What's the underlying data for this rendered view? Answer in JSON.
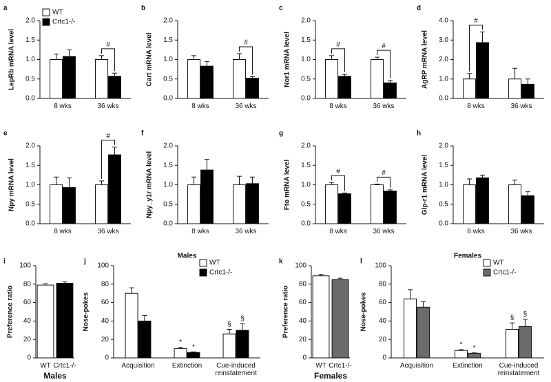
{
  "chart_data": [
    {
      "type": "bar",
      "label": "a",
      "ylabel": "LepRb mRNA level",
      "categories": [
        "8 wks",
        "36 wks"
      ],
      "legend": "upper-left",
      "series": [
        {
          "name": "WT",
          "color": "#ffffff",
          "values": [
            1.0,
            1.0
          ],
          "errors": [
            0.14,
            0.1
          ]
        },
        {
          "name": "Crtc1-/-",
          "color": "#000000",
          "values": [
            1.08,
            0.57
          ],
          "errors": [
            0.17,
            0.08
          ]
        }
      ],
      "brackets": [
        null,
        "#"
      ],
      "ylim": [
        0,
        2
      ],
      "yticks": [
        {
          "value": 0,
          "label": "0.0"
        },
        {
          "value": 0.5,
          "label": "0.5"
        },
        {
          "value": 1,
          "label": "1.0"
        },
        {
          "value": 1.5,
          "label": "1.5"
        },
        {
          "value": 2,
          "label": "2.0"
        }
      ]
    },
    {
      "type": "bar",
      "label": "b",
      "ylabel": "Cart mRNA level",
      "categories": [
        "8 wks",
        "36 wks"
      ],
      "series": [
        {
          "name": "WT",
          "color": "#ffffff",
          "values": [
            1.0,
            1.0
          ],
          "errors": [
            0.1,
            0.15
          ]
        },
        {
          "name": "Crtc1-/-",
          "color": "#000000",
          "values": [
            0.83,
            0.52
          ],
          "errors": [
            0.12,
            0.04
          ]
        }
      ],
      "brackets": [
        null,
        "#"
      ],
      "ylim": [
        0,
        2
      ],
      "yticks": [
        {
          "value": 0,
          "label": "0.0"
        },
        {
          "value": 0.5,
          "label": "0.5"
        },
        {
          "value": 1,
          "label": "1.0"
        },
        {
          "value": 1.5,
          "label": "1.5"
        },
        {
          "value": 2,
          "label": "2.0"
        }
      ]
    },
    {
      "type": "bar",
      "label": "c",
      "ylabel": "Nor1 mRNA level",
      "categories": [
        "8 wks",
        "36 wks"
      ],
      "series": [
        {
          "name": "WT",
          "color": "#ffffff",
          "values": [
            1.0,
            1.0
          ],
          "errors": [
            0.1,
            0.06
          ]
        },
        {
          "name": "Crtc1-/-",
          "color": "#000000",
          "values": [
            0.57,
            0.4
          ],
          "errors": [
            0.05,
            0.06
          ]
        }
      ],
      "brackets": [
        "#",
        "#"
      ],
      "ylim": [
        0,
        2
      ],
      "yticks": [
        {
          "value": 0,
          "label": "0.0"
        },
        {
          "value": 0.5,
          "label": "0.5"
        },
        {
          "value": 1,
          "label": "1.0"
        },
        {
          "value": 1.5,
          "label": "1.5"
        },
        {
          "value": 2,
          "label": "2.0"
        }
      ]
    },
    {
      "type": "bar",
      "label": "d",
      "ylabel": "AgRP mRNA level",
      "categories": [
        "8 wks",
        "36 wks"
      ],
      "series": [
        {
          "name": "WT",
          "color": "#ffffff",
          "values": [
            1.0,
            1.0
          ],
          "errors": [
            0.28,
            0.55
          ]
        },
        {
          "name": "Crtc1-/-",
          "color": "#000000",
          "values": [
            2.87,
            0.73
          ],
          "errors": [
            0.55,
            0.27
          ]
        }
      ],
      "brackets": [
        "#",
        null
      ],
      "ylim": [
        0,
        4
      ],
      "yticks": [
        {
          "value": 0,
          "label": "0.0"
        },
        {
          "value": 1,
          "label": "1.0"
        },
        {
          "value": 2,
          "label": "2.0"
        },
        {
          "value": 3,
          "label": "3.0"
        },
        {
          "value": 4,
          "label": "4.0"
        }
      ]
    },
    {
      "type": "bar",
      "label": "e",
      "ylabel": "Npy mRNA level",
      "categories": [
        "8 wks",
        "36 wks"
      ],
      "series": [
        {
          "name": "WT",
          "color": "#ffffff",
          "values": [
            1.0,
            1.0
          ],
          "errors": [
            0.2,
            0.1
          ]
        },
        {
          "name": "Crtc1-/-",
          "color": "#000000",
          "values": [
            0.93,
            1.77
          ],
          "errors": [
            0.25,
            0.2
          ]
        }
      ],
      "brackets": [
        null,
        "#"
      ],
      "ylim": [
        0,
        2
      ],
      "yticks": [
        {
          "value": 0,
          "label": "0.0"
        },
        {
          "value": 0.5,
          "label": "0.5"
        },
        {
          "value": 1,
          "label": "1.0"
        },
        {
          "value": 1.5,
          "label": "1.5"
        },
        {
          "value": 2,
          "label": "2.0"
        }
      ]
    },
    {
      "type": "bar",
      "label": "f",
      "ylabel": "Npy_y1r mRNA level",
      "categories": [
        "8 wks",
        "36 wks"
      ],
      "series": [
        {
          "name": "WT",
          "color": "#ffffff",
          "values": [
            1.0,
            1.0
          ],
          "errors": [
            0.2,
            0.22
          ]
        },
        {
          "name": "Crtc1-/-",
          "color": "#000000",
          "values": [
            1.38,
            1.03
          ],
          "errors": [
            0.27,
            0.17
          ]
        }
      ],
      "ylim": [
        0,
        2
      ],
      "yticks": [
        {
          "value": 0,
          "label": "0.0"
        },
        {
          "value": 0.5,
          "label": "0.5"
        },
        {
          "value": 1,
          "label": "1.0"
        },
        {
          "value": 1.5,
          "label": "1.5"
        },
        {
          "value": 2,
          "label": "2.0"
        }
      ]
    },
    {
      "type": "bar",
      "label": "g",
      "ylabel": "Fto mRNA level",
      "categories": [
        "8 wks",
        "36 wks"
      ],
      "series": [
        {
          "name": "WT",
          "color": "#ffffff",
          "values": [
            1.0,
            1.0
          ],
          "errors": [
            0.06,
            0.02
          ]
        },
        {
          "name": "Crtc1-/-",
          "color": "#000000",
          "values": [
            0.77,
            0.84
          ],
          "errors": [
            0.02,
            0.03
          ]
        }
      ],
      "brackets": [
        "#",
        "#"
      ],
      "ylim": [
        0,
        2
      ],
      "yticks": [
        {
          "value": 0,
          "label": "0.0"
        },
        {
          "value": 0.5,
          "label": "0.5"
        },
        {
          "value": 1,
          "label": "1.0"
        },
        {
          "value": 1.5,
          "label": "1.5"
        },
        {
          "value": 2,
          "label": "2.0"
        }
      ]
    },
    {
      "type": "bar",
      "label": "h",
      "ylabel": "Glp-r1 mRNA level",
      "categories": [
        "8 wks",
        "36 wks"
      ],
      "series": [
        {
          "name": "WT",
          "color": "#ffffff",
          "values": [
            1.0,
            1.0
          ],
          "errors": [
            0.15,
            0.12
          ]
        },
        {
          "name": "Crtc1-/-",
          "color": "#000000",
          "values": [
            1.18,
            0.72
          ],
          "errors": [
            0.07,
            0.1
          ]
        }
      ],
      "ylim": [
        0,
        2
      ],
      "yticks": [
        {
          "value": 0,
          "label": "0.0"
        },
        {
          "value": 0.5,
          "label": "0.5"
        },
        {
          "value": 1,
          "label": "1.0"
        },
        {
          "value": 1.5,
          "label": "1.5"
        },
        {
          "value": 2,
          "label": "2.0"
        }
      ]
    },
    {
      "type": "bar",
      "label": "i",
      "ylabel": "Preference ratio",
      "xlabel": "Males",
      "categories": [
        "WT",
        "Crtc1-/-"
      ],
      "values": [
        79,
        81
      ],
      "errors": [
        1.5,
        1.5
      ],
      "colors": [
        "#ffffff",
        "#000000"
      ],
      "ylim": [
        0,
        100
      ],
      "yticks": [
        0,
        20,
        40,
        60,
        80,
        100
      ]
    },
    {
      "type": "bar",
      "label": "j",
      "title": "Males",
      "ylabel": "Nose-pokes",
      "categories": [
        "Acquisition",
        "Extinction",
        "Cue-induced\nreinstatement"
      ],
      "legend": "upper-right",
      "series": [
        {
          "name": "WT",
          "color": "#ffffff",
          "values": [
            70,
            10,
            26
          ],
          "errors": [
            6,
            1.5,
            5
          ],
          "labels": [
            null,
            "*",
            "§"
          ]
        },
        {
          "name": "Crtc1-/-",
          "color": "#000000",
          "values": [
            40,
            6,
            30
          ],
          "errors": [
            6,
            0.5,
            7
          ],
          "labels": [
            null,
            "*",
            "§"
          ]
        }
      ],
      "ylim": [
        0,
        100
      ],
      "yticks": [
        0,
        20,
        40,
        60,
        80,
        100
      ]
    },
    {
      "type": "bar",
      "label": "k",
      "ylabel": "Preference ratio",
      "xlabel": "Females",
      "categories": [
        "WT",
        "Crtc1-/-"
      ],
      "values": [
        89,
        85
      ],
      "errors": [
        1.5,
        1.5
      ],
      "colors": [
        "#ffffff",
        "#6b6b6b"
      ],
      "ylim": [
        0,
        100
      ],
      "yticks": [
        0,
        20,
        40,
        60,
        80,
        100
      ]
    },
    {
      "type": "bar",
      "label": "l",
      "title": "Females",
      "ylabel": "Nose-pokes",
      "categories": [
        "Acquisition",
        "Extinction",
        "Cue-induced\nreinstatement"
      ],
      "legend": "upper-right",
      "series": [
        {
          "name": "WT",
          "color": "#ffffff",
          "values": [
            64,
            8,
            31
          ],
          "errors": [
            10,
            1,
            7
          ],
          "labels": [
            null,
            "*",
            "§"
          ]
        },
        {
          "name": "Crtc1-/-",
          "color": "#6b6b6b",
          "values": [
            55,
            5,
            34
          ],
          "errors": [
            6,
            0.5,
            8
          ],
          "labels": [
            null,
            "*",
            "§"
          ]
        }
      ],
      "ylim": [
        0,
        100
      ],
      "yticks": [
        0,
        20,
        40,
        60,
        80,
        100
      ]
    }
  ]
}
